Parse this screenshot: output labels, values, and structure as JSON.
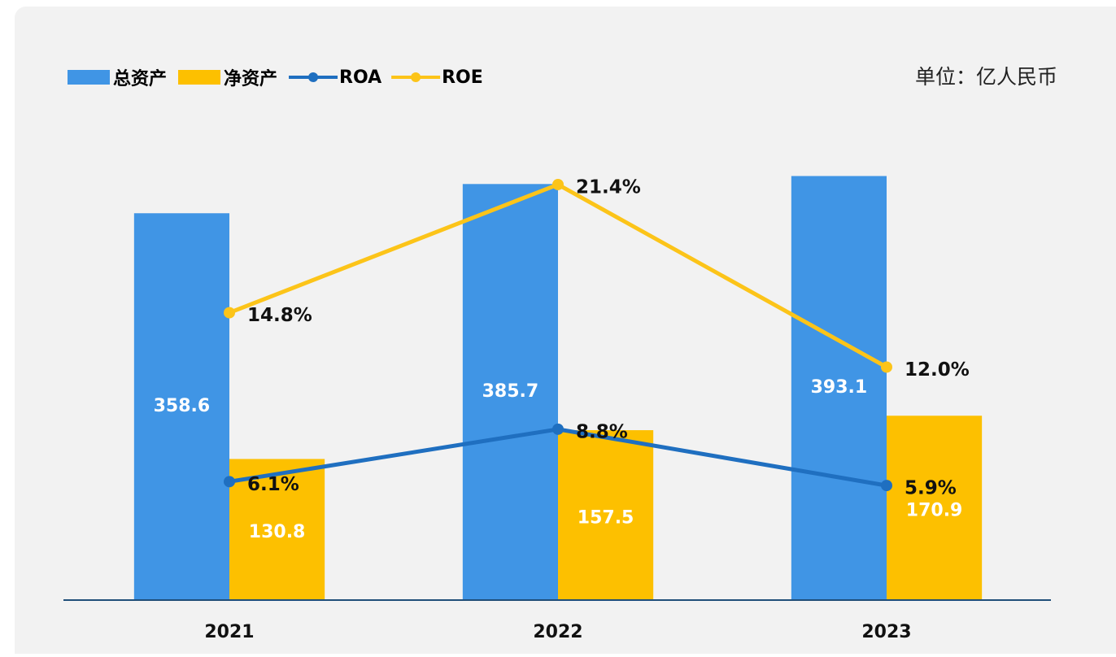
{
  "chart_data": {
    "type": "bar",
    "unit": "单位：亿人民币",
    "categories": [
      "2021",
      "2022",
      "2023"
    ],
    "series": [
      {
        "name": "总资产",
        "type": "bar",
        "color": "#4095e5",
        "values": [
          358.6,
          385.7,
          393.1
        ]
      },
      {
        "name": "净资产",
        "type": "bar",
        "color": "#fdc000",
        "values": [
          130.8,
          157.5,
          170.9
        ]
      },
      {
        "name": "ROA",
        "type": "line",
        "axis": "y2",
        "color": "#1f6fc0",
        "values": [
          6.1,
          8.8,
          5.9
        ],
        "value_labels": [
          "6.1%",
          "8.8%",
          "5.9%"
        ]
      },
      {
        "name": "ROE",
        "type": "line",
        "axis": "y2",
        "color": "#fcc419",
        "values": [
          14.8,
          21.4,
          12.0
        ],
        "value_labels": [
          "14.8%",
          "21.4%",
          "12.0%"
        ]
      }
    ],
    "ylim": [
      0,
      450
    ],
    "y2lim": [
      0,
      25
    ],
    "grid": false,
    "legend": "top-left"
  }
}
